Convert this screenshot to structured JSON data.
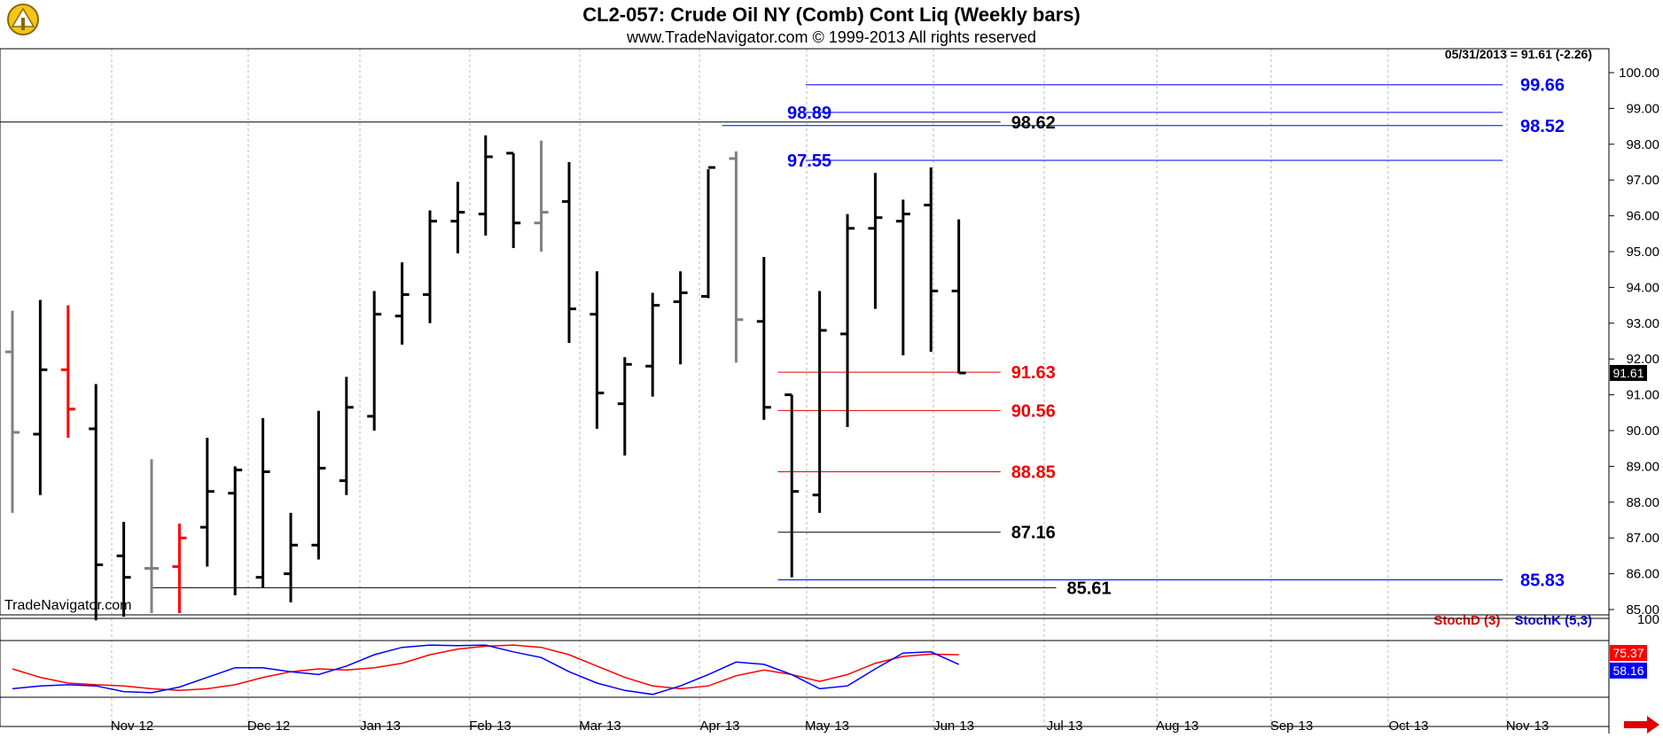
{
  "header": {
    "title": "CL2-057:  Crude Oil NY (Comb) Cont Liq  (Weekly bars)",
    "subtitle": "www.TradeNavigator.com © 1999-2013 All rights reserved",
    "last_info": "05/31/2013 = 91.61 (-2.26)",
    "watermark": "TradeNavigator.com"
  },
  "colors": {
    "bar_black": "#000000",
    "bar_gray": "#808080",
    "bar_red": "#ff0000",
    "level_blue": "#0000ee",
    "level_red": "#ee0000",
    "stoch_d": "#ff0000",
    "stoch_k": "#0000ff"
  },
  "chart_data": {
    "type": "ohlc",
    "yaxis": {
      "range": [
        85.0,
        100.0
      ],
      "ticks": [
        "100.00",
        "99.00",
        "98.00",
        "97.00",
        "96.00",
        "95.00",
        "94.00",
        "93.00",
        "92.00",
        "91.00",
        "90.00",
        "89.00",
        "88.00",
        "87.00",
        "86.00",
        "85.00"
      ]
    },
    "xaxis": {
      "tick_labels": [
        "Nov-12",
        "Dec-12",
        "Jan-13",
        "Feb-13",
        "Mar-13",
        "Apr-13",
        "May-13",
        "Jun-13",
        "Jul-13",
        "Aug-13",
        "Sep-13",
        "Oct-13",
        "Nov-13"
      ]
    },
    "last_price_label": "91.61",
    "bars": [
      {
        "o": 92.2,
        "h": 93.35,
        "l": 87.7,
        "c": 89.95,
        "color": "gray"
      },
      {
        "o": 89.9,
        "h": 93.65,
        "l": 88.2,
        "c": 91.7,
        "color": "black"
      },
      {
        "o": 91.7,
        "h": 93.5,
        "l": 89.8,
        "c": 90.6,
        "color": "red"
      },
      {
        "o": 90.05,
        "h": 91.3,
        "l": 84.7,
        "c": 86.25,
        "color": "black"
      },
      {
        "o": 86.5,
        "h": 87.45,
        "l": 84.8,
        "c": 85.9,
        "color": "black"
      },
      {
        "o": 86.15,
        "h": 89.2,
        "l": 84.9,
        "c": 86.15,
        "color": "gray"
      },
      {
        "o": 86.2,
        "h": 87.4,
        "l": 84.9,
        "c": 87.0,
        "color": "red"
      },
      {
        "o": 87.3,
        "h": 89.8,
        "l": 86.2,
        "c": 88.3,
        "color": "black"
      },
      {
        "o": 88.25,
        "h": 89.0,
        "l": 85.4,
        "c": 88.9,
        "color": "black"
      },
      {
        "o": 85.9,
        "h": 90.35,
        "l": 85.6,
        "c": 88.85,
        "color": "black"
      },
      {
        "o": 86.0,
        "h": 87.7,
        "l": 85.2,
        "c": 86.8,
        "color": "black"
      },
      {
        "o": 86.8,
        "h": 90.55,
        "l": 86.4,
        "c": 88.95,
        "color": "black"
      },
      {
        "o": 88.6,
        "h": 91.5,
        "l": 88.2,
        "c": 90.65,
        "color": "black"
      },
      {
        "o": 90.4,
        "h": 93.9,
        "l": 90.0,
        "c": 93.25,
        "color": "black"
      },
      {
        "o": 93.2,
        "h": 94.7,
        "l": 92.4,
        "c": 93.8,
        "color": "black"
      },
      {
        "o": 93.8,
        "h": 96.15,
        "l": 93.0,
        "c": 95.85,
        "color": "black"
      },
      {
        "o": 95.85,
        "h": 96.95,
        "l": 94.95,
        "c": 96.1,
        "color": "black"
      },
      {
        "o": 96.05,
        "h": 98.25,
        "l": 95.45,
        "c": 97.65,
        "color": "black"
      },
      {
        "o": 97.75,
        "h": 97.75,
        "l": 95.1,
        "c": 95.8,
        "color": "black"
      },
      {
        "o": 95.8,
        "h": 98.1,
        "l": 95.0,
        "c": 96.1,
        "color": "gray"
      },
      {
        "o": 96.4,
        "h": 97.5,
        "l": 92.45,
        "c": 93.4,
        "color": "black"
      },
      {
        "o": 93.25,
        "h": 94.45,
        "l": 90.05,
        "c": 91.05,
        "color": "black"
      },
      {
        "o": 90.75,
        "h": 92.05,
        "l": 89.3,
        "c": 91.85,
        "color": "black"
      },
      {
        "o": 91.8,
        "h": 93.85,
        "l": 90.95,
        "c": 93.5,
        "color": "black"
      },
      {
        "o": 93.6,
        "h": 94.45,
        "l": 91.85,
        "c": 93.85,
        "color": "black"
      },
      {
        "o": 93.75,
        "h": 97.3,
        "l": 93.7,
        "c": 97.35,
        "color": "black"
      },
      {
        "o": 97.6,
        "h": 97.8,
        "l": 91.9,
        "c": 93.1,
        "color": "gray"
      },
      {
        "o": 93.05,
        "h": 94.85,
        "l": 90.3,
        "c": 90.65,
        "color": "black"
      },
      {
        "o": 91.0,
        "h": 91.0,
        "l": 85.9,
        "c": 88.3,
        "color": "black"
      },
      {
        "o": 88.2,
        "h": 93.9,
        "l": 87.7,
        "c": 92.8,
        "color": "black"
      },
      {
        "o": 92.7,
        "h": 96.05,
        "l": 90.1,
        "c": 95.65,
        "color": "black"
      },
      {
        "o": 95.65,
        "h": 97.2,
        "l": 93.4,
        "c": 95.95,
        "color": "black"
      },
      {
        "o": 95.85,
        "h": 96.45,
        "l": 92.1,
        "c": 96.05,
        "color": "black"
      },
      {
        "o": 96.3,
        "h": 97.35,
        "l": 92.2,
        "c": 93.9,
        "color": "black"
      },
      {
        "o": 93.9,
        "h": 95.9,
        "l": 91.6,
        "c": 91.61,
        "color": "black"
      }
    ],
    "levels": [
      {
        "label": "99.66",
        "price": 99.66,
        "color": "blue",
        "from_bar": 28.5,
        "to_bar": 60.0,
        "label_side": "right"
      },
      {
        "label": "98.89",
        "price": 98.89,
        "color": "blue",
        "from_bar": 28.5,
        "to_bar": 60.0,
        "label_side": "left"
      },
      {
        "label": "98.52",
        "price": 98.52,
        "color": "blue",
        "from_bar": 25.5,
        "to_bar": 60.0,
        "label_side": "right"
      },
      {
        "label": "97.55",
        "price": 97.55,
        "color": "blue",
        "from_bar": 28.5,
        "to_bar": 60.0,
        "label_side": "left"
      },
      {
        "label": "98.62",
        "price": 98.62,
        "color": "black",
        "from_bar": -1.0,
        "to_bar": 35.5,
        "label_side": "end"
      },
      {
        "label": "91.63",
        "price": 91.63,
        "color": "red",
        "from_bar": 27.5,
        "to_bar": 35.5,
        "label_side": "end"
      },
      {
        "label": "90.56",
        "price": 90.56,
        "color": "red",
        "from_bar": 27.5,
        "to_bar": 35.5,
        "label_side": "end"
      },
      {
        "label": "88.85",
        "price": 88.85,
        "color": "red",
        "from_bar": 27.5,
        "to_bar": 35.5,
        "label_side": "end"
      },
      {
        "label": "87.16",
        "price": 87.16,
        "color": "black",
        "from_bar": 27.5,
        "to_bar": 35.5,
        "label_side": "end"
      },
      {
        "label": "85.83",
        "price": 85.83,
        "color": "blue",
        "from_bar": 27.5,
        "to_bar": 60.0,
        "label_side": "right"
      },
      {
        "label": "85.61",
        "price": 85.61,
        "color": "black",
        "from_bar": 5.0,
        "to_bar": 37.5,
        "label_side": "end"
      }
    ],
    "stochastic": {
      "legend_d": "StochD (3)",
      "legend_k": "StochK (5,3)",
      "yaxis_label": "100",
      "range": [
        0,
        100
      ],
      "d_last_label": "75.37",
      "k_last_label": "58.16",
      "d": [
        50,
        35,
        25,
        22,
        20,
        15,
        12,
        15,
        22,
        35,
        45,
        50,
        48,
        52,
        60,
        75,
        85,
        90,
        92,
        88,
        75,
        55,
        35,
        20,
        15,
        20,
        38,
        48,
        40,
        28,
        40,
        60,
        72,
        76,
        75
      ],
      "k": [
        15,
        20,
        22,
        20,
        10,
        8,
        18,
        35,
        52,
        52,
        45,
        40,
        55,
        75,
        88,
        92,
        91,
        92,
        80,
        70,
        45,
        25,
        12,
        5,
        20,
        40,
        62,
        58,
        40,
        15,
        20,
        50,
        78,
        80,
        58
      ]
    }
  }
}
